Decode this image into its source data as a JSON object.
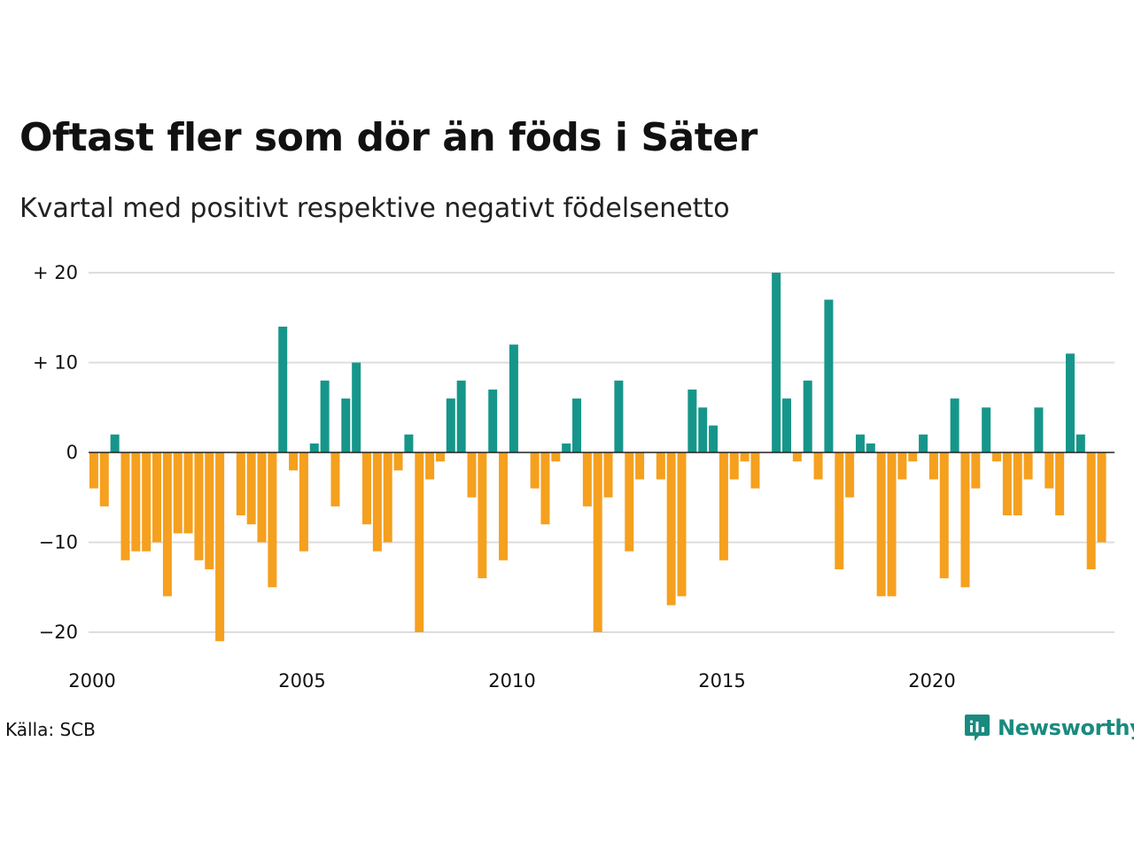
{
  "title": "Oftast fler som dör än föds i Säter",
  "subtitle": "Kvartal med positivt respektive negativt födelsenetto",
  "source": "Källa: SCB",
  "brand": {
    "name": "Newsworthy",
    "icon": "newsworthy-logo-icon"
  },
  "colors": {
    "positive": "#16968a",
    "negative": "#f5a01e",
    "grid": "#dddddd",
    "zero": "#222222"
  },
  "chart_data": {
    "type": "bar",
    "title": "Oftast fler som dör än föds i Säter",
    "subtitle": "Kvartal med positivt respektive negativt födelsenetto",
    "xlabel": "",
    "ylabel": "",
    "ylim": [
      -22,
      21
    ],
    "grid": true,
    "x_start": 2000.0,
    "x_step": 0.25,
    "y_ticks": [
      {
        "value": 20,
        "label": "+ 20"
      },
      {
        "value": 10,
        "label": "+ 10"
      },
      {
        "value": 0,
        "label": "0"
      },
      {
        "value": -10,
        "label": "−10"
      },
      {
        "value": -20,
        "label": "−20"
      }
    ],
    "x_ticks": [
      {
        "value": 2000,
        "label": "2000"
      },
      {
        "value": 2005,
        "label": "2005"
      },
      {
        "value": 2010,
        "label": "2010"
      },
      {
        "value": 2015,
        "label": "2015"
      },
      {
        "value": 2020,
        "label": "2020"
      }
    ],
    "values": [
      -4,
      -6,
      2,
      -12,
      -11,
      -11,
      -10,
      -16,
      -9,
      -9,
      -12,
      -13,
      -21,
      0,
      -7,
      -8,
      -10,
      -15,
      14,
      -2,
      -11,
      1,
      8,
      -6,
      6,
      10,
      -8,
      -11,
      -10,
      -2,
      2,
      -20,
      -3,
      -1,
      6,
      8,
      -5,
      -14,
      7,
      -12,
      12,
      0,
      -4,
      -8,
      -1,
      1,
      6,
      -6,
      -20,
      -5,
      8,
      -11,
      -3,
      0,
      -3,
      -17,
      -16,
      7,
      5,
      3,
      -12,
      -3,
      -1,
      -4,
      0,
      20,
      6,
      -1,
      8,
      -3,
      17,
      -13,
      -5,
      2,
      1,
      -16,
      -16,
      -3,
      -1,
      2,
      -3,
      -14,
      6,
      -15,
      -4,
      5,
      -1,
      -7,
      -7,
      -3,
      5,
      -4,
      -7,
      11,
      2,
      -13,
      -10
    ]
  }
}
